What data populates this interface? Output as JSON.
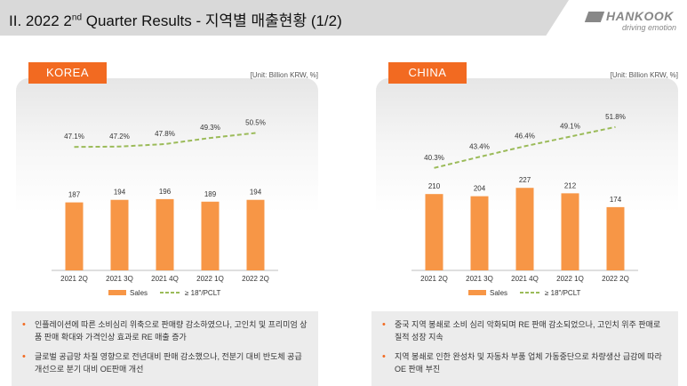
{
  "header": {
    "title_prefix": "II. 2022 2",
    "title_sup": "nd",
    "title_suffix": " Quarter Results - 지역별 매출현황 (1/2)",
    "logo_text": "HANKOOK",
    "logo_tagline": "driving emotion"
  },
  "colors": {
    "accent": "#f26a21",
    "bar": "#f79646",
    "line": "#9bbb59"
  },
  "panels": [
    {
      "tab": "KOREA",
      "unit": "[Unit: Billion KRW, %]",
      "legend": {
        "bars": "Sales",
        "line": "≥ 18\"/PCLT"
      },
      "bullets": [
        "인플레이션에 따른 소비심리 위축으로 판매량 감소하였으나, 고인치 및 프리미엄 상품 판매 확대와 가격인상 효과로 RE 매출 증가",
        "글로벌 공급망 차질 영향으로 전년대비 판매 감소했으나, 전분기 대비 반도체 공급 개선으로 분기 대비 OE판매 개선"
      ]
    },
    {
      "tab": "CHINA",
      "unit": "[Unit: Billion KRW, %]",
      "legend": {
        "bars": "Sales",
        "line": "≥ 18\"/PCLT"
      },
      "bullets": [
        "중국 지역 봉쇄로 소비 심리 악화되며 RE 판매 감소되었으나, 고인치 위주 판매로 질적 성장 지속",
        "지역 봉쇄로 인한 완성차 및 자동차 부품 업체 가동중단으로 차량생산 급감에 따라 OE 판매 부진"
      ]
    }
  ],
  "chart_data": [
    {
      "type": "bar",
      "categories": [
        "2021 2Q",
        "2021 3Q",
        "2021 4Q",
        "2022 1Q",
        "2022 2Q"
      ],
      "series": [
        {
          "name": "Sales",
          "type": "bar",
          "values": [
            187,
            194,
            196,
            189,
            194
          ],
          "labels": [
            "187",
            "194",
            "196",
            "189",
            "194"
          ]
        },
        {
          "name": "≥ 18\"/PCLT",
          "type": "line",
          "style": "dashed",
          "values": [
            47.1,
            47.2,
            47.8,
            49.3,
            50.5
          ],
          "labels": [
            "47.1%",
            "47.2%",
            "47.8%",
            "49.3%",
            "50.5%"
          ]
        }
      ],
      "bar_range": [
        0,
        230
      ],
      "line_range": [
        40,
        53
      ]
    },
    {
      "type": "bar",
      "categories": [
        "2021 2Q",
        "2021 3Q",
        "2021 4Q",
        "2022 1Q",
        "2022 2Q"
      ],
      "series": [
        {
          "name": "Sales",
          "type": "bar",
          "values": [
            210,
            204,
            227,
            212,
            174
          ],
          "labels": [
            "210",
            "204",
            "227",
            "212",
            "174"
          ]
        },
        {
          "name": "≥ 18\"/PCLT",
          "type": "line",
          "style": "dashed",
          "values": [
            40.3,
            43.4,
            46.4,
            49.1,
            51.8
          ],
          "labels": [
            "40.3%",
            "43.4%",
            "46.4%",
            "49.1%",
            "51.8%"
          ]
        }
      ],
      "bar_range": [
        0,
        230
      ],
      "line_range": [
        38,
        53
      ]
    }
  ]
}
